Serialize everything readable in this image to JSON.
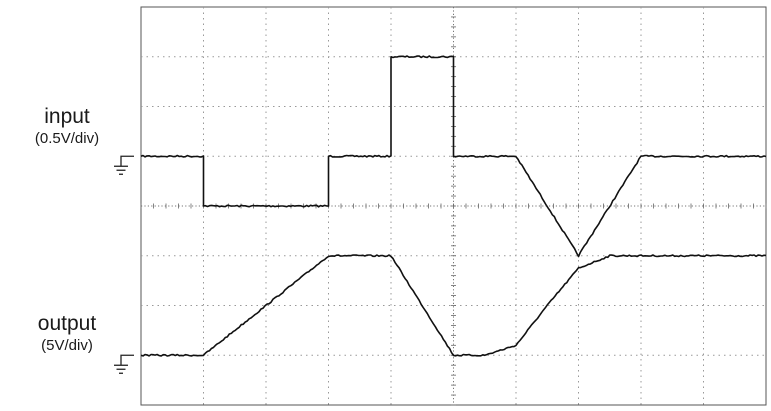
{
  "chart_data": {
    "type": "line",
    "title": "",
    "xlabel": "",
    "ylabel": "",
    "x_divisions": 10,
    "y_divisions": 8,
    "grid": true,
    "channels": [
      {
        "name": "input",
        "scale": "(0.5V/div)",
        "ground_div": 5,
        "x": [
          0,
          1,
          1,
          3,
          3,
          4,
          4,
          5,
          5,
          6,
          7,
          8,
          10
        ],
        "y": [
          5,
          5,
          4,
          4,
          5,
          5,
          7,
          7,
          5,
          5,
          3,
          5,
          5
        ]
      },
      {
        "name": "output",
        "scale": "(5V/div)",
        "ground_div": 1,
        "x": [
          0,
          1,
          3,
          4,
          5,
          5.5,
          6,
          6.5,
          7,
          7.5,
          8,
          10
        ],
        "y": [
          1,
          1,
          3,
          3,
          1,
          1,
          1.2,
          2,
          2.75,
          3,
          3,
          3
        ]
      }
    ]
  }
}
